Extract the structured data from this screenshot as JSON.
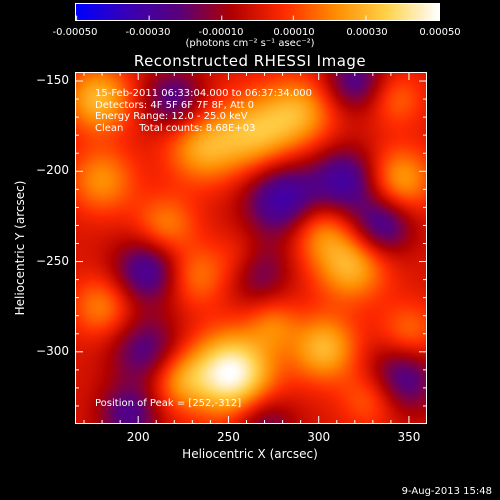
{
  "colorbar": {
    "ticks": [
      "-0.00050",
      "-0.00030",
      "-0.00010",
      "0.00010",
      "0.00030",
      "0.00050"
    ],
    "tick_values": [
      -0.0005,
      -0.0003,
      -0.0001,
      0.0001,
      0.0003,
      0.0005
    ],
    "range": [
      -0.0005,
      0.0005
    ],
    "units": "(photons cm⁻² s⁻¹ asec⁻²)",
    "colors": [
      "#0000ff",
      "#3a00b4",
      "#5a007a",
      "#b00000",
      "#ff2a00",
      "#ff8c00",
      "#ffd24a",
      "#ffffff"
    ]
  },
  "chart_data": {
    "type": "heatmap",
    "title": "Reconstructed RHESSI Image",
    "xlabel": "Heliocentric X (arcsec)",
    "ylabel": "Heliocentric Y (arcsec)",
    "xlim": [
      165,
      360
    ],
    "ylim": [
      -340,
      -145
    ],
    "xticks": [
      200,
      250,
      300,
      350
    ],
    "yticks": [
      -150,
      -200,
      -250,
      -300
    ],
    "grid": false,
    "peak": {
      "x": 252,
      "y": -312,
      "value": 0.0005
    },
    "sources": [
      {
        "x": 252,
        "y": -312,
        "value": 0.0005,
        "r": 16
      },
      {
        "x": 303,
        "y": -298,
        "value": 0.0003,
        "r": 13
      },
      {
        "x": 222,
        "y": -315,
        "value": 0.00022,
        "r": 12
      },
      {
        "x": 318,
        "y": -252,
        "value": 0.0003,
        "r": 14
      },
      {
        "x": 300,
        "y": -233,
        "value": 0.0002,
        "r": 12
      },
      {
        "x": 265,
        "y": -180,
        "value": 0.0003,
        "r": 16
      },
      {
        "x": 235,
        "y": -187,
        "value": 0.00025,
        "r": 14
      },
      {
        "x": 290,
        "y": -167,
        "value": 0.00024,
        "r": 14
      },
      {
        "x": 178,
        "y": -160,
        "value": 0.0003,
        "r": 13
      },
      {
        "x": 180,
        "y": -205,
        "value": 0.00022,
        "r": 13
      },
      {
        "x": 215,
        "y": -230,
        "value": 0.0002,
        "r": 12
      },
      {
        "x": 232,
        "y": -258,
        "value": 0.00018,
        "r": 12
      },
      {
        "x": 258,
        "y": -250,
        "value": 0.00016,
        "r": 11
      },
      {
        "x": 345,
        "y": -205,
        "value": 0.00026,
        "r": 13
      },
      {
        "x": 343,
        "y": -160,
        "value": 0.00015,
        "r": 11
      },
      {
        "x": 180,
        "y": -275,
        "value": 0.0002,
        "r": 12
      },
      {
        "x": 350,
        "y": -290,
        "value": 0.00018,
        "r": 12
      },
      {
        "x": 275,
        "y": -285,
        "value": 0.00015,
        "r": 10
      },
      {
        "x": 330,
        "y": -325,
        "value": 0.0002,
        "r": 12
      },
      {
        "x": 205,
        "y": -300,
        "value": -0.00025,
        "r": 14
      },
      {
        "x": 205,
        "y": -255,
        "value": -0.0003,
        "r": 13
      },
      {
        "x": 280,
        "y": -215,
        "value": -0.00035,
        "r": 15
      },
      {
        "x": 315,
        "y": -205,
        "value": -0.0003,
        "r": 13
      },
      {
        "x": 335,
        "y": -230,
        "value": -0.0003,
        "r": 12
      },
      {
        "x": 265,
        "y": -255,
        "value": -0.00025,
        "r": 12
      },
      {
        "x": 345,
        "y": -315,
        "value": -0.0003,
        "r": 14
      },
      {
        "x": 220,
        "y": -160,
        "value": -0.00025,
        "r": 12
      },
      {
        "x": 320,
        "y": -150,
        "value": -0.00025,
        "r": 12
      },
      {
        "x": 195,
        "y": -335,
        "value": -0.00025,
        "r": 12
      },
      {
        "x": 270,
        "y": -340,
        "value": -0.0002,
        "r": 12
      }
    ]
  },
  "info": {
    "line1": "15-Feb-2011 06:33:04.000 to 06:37:34.000",
    "line2": "Detectors: 4F 5F 6F 7F 8F, Att 0",
    "line3": "Energy Range: 12.0 - 25.0 keV",
    "line4": "Clean     Total counts: 8.68E+03",
    "peak_label": "Position of Peak = [252,-312]"
  },
  "date_stamp": "9-Aug-2013 15:48"
}
